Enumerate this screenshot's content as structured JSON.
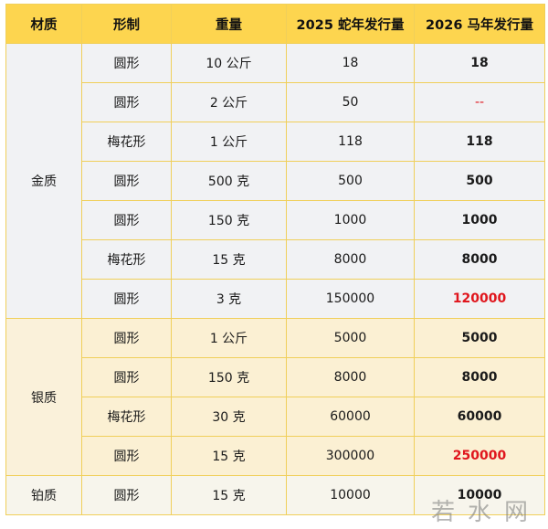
{
  "table": {
    "headers": [
      "材质",
      "形制",
      "重量",
      "2025 蛇年发行量",
      "2026 马年发行量"
    ],
    "groups": [
      {
        "material": "金质",
        "rows": [
          {
            "shape": "圆形",
            "weight": "10 公斤",
            "y2025": "18",
            "y2026": "18",
            "y2026_style": "bold"
          },
          {
            "shape": "圆形",
            "weight": "2 公斤",
            "y2025": "50",
            "y2026": "--",
            "y2026_style": "dash"
          },
          {
            "shape": "梅花形",
            "weight": "1 公斤",
            "y2025": "118",
            "y2026": "118",
            "y2026_style": "bold"
          },
          {
            "shape": "圆形",
            "weight": "500 克",
            "y2025": "500",
            "y2026": "500",
            "y2026_style": "bold"
          },
          {
            "shape": "圆形",
            "weight": "150 克",
            "y2025": "1000",
            "y2026": "1000",
            "y2026_style": "bold"
          },
          {
            "shape": "梅花形",
            "weight": "15 克",
            "y2025": "8000",
            "y2026": "8000",
            "y2026_style": "bold"
          },
          {
            "shape": "圆形",
            "weight": "3 克",
            "y2025": "150000",
            "y2026": "120000",
            "y2026_style": "red"
          }
        ]
      },
      {
        "material": "银质",
        "rows": [
          {
            "shape": "圆形",
            "weight": "1 公斤",
            "y2025": "5000",
            "y2026": "5000",
            "y2026_style": "bold"
          },
          {
            "shape": "圆形",
            "weight": "150 克",
            "y2025": "8000",
            "y2026": "8000",
            "y2026_style": "bold"
          },
          {
            "shape": "梅花形",
            "weight": "30 克",
            "y2025": "60000",
            "y2026": "60000",
            "y2026_style": "bold"
          },
          {
            "shape": "圆形",
            "weight": "15 克",
            "y2025": "300000",
            "y2026": "250000",
            "y2026_style": "red"
          }
        ]
      },
      {
        "material": "铂质",
        "rows": [
          {
            "shape": "圆形",
            "weight": "15 克",
            "y2025": "10000",
            "y2026": "10000",
            "y2026_style": "bold"
          }
        ]
      }
    ]
  },
  "watermark": "若水网",
  "colors": {
    "header": "#fdd54f",
    "border": "#f0cf5a",
    "gold_rows": "#f1f2f4",
    "silver_rows": "#fbf0d3",
    "decrease": "#e0161d"
  }
}
